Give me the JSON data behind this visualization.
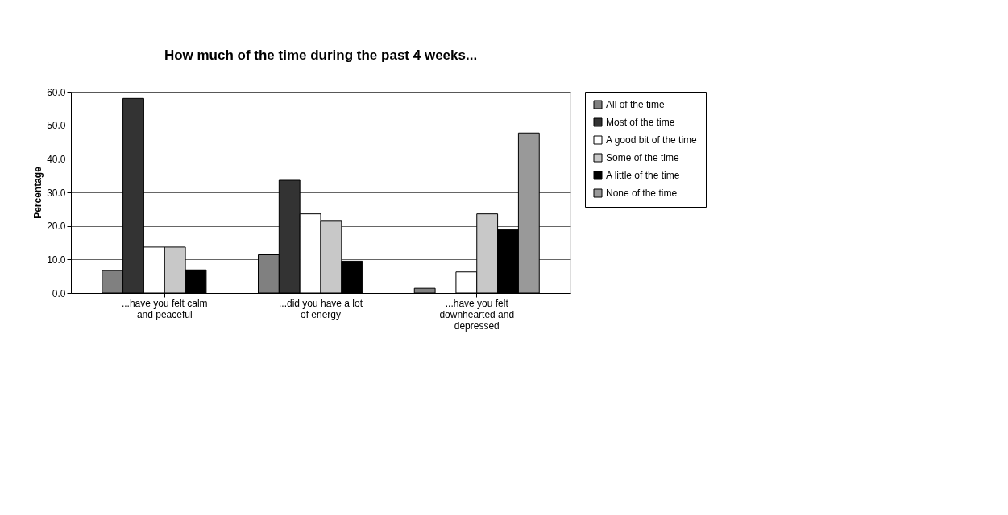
{
  "chart_data": {
    "type": "bar",
    "title": "How much of the time during the past 4 weeks...",
    "ylabel": "Percentage",
    "categories": [
      "...have you felt calm and peaceful",
      "...did you have a lot of energy",
      "...have you felt downhearted and depressed"
    ],
    "series": [
      {
        "name": "All of the time",
        "color": "#808080",
        "values": [
          6.7,
          11.4,
          1.4
        ]
      },
      {
        "name": "Most of the time",
        "color": "#333333",
        "values": [
          58.0,
          33.6,
          null
        ]
      },
      {
        "name": "A good bit of the time",
        "color": "#ffffff",
        "values": [
          13.7,
          23.6,
          6.3
        ]
      },
      {
        "name": "Some of the time",
        "color": "#c8c8c8",
        "values": [
          13.7,
          21.4,
          23.6
        ]
      },
      {
        "name": "A little of the time",
        "color": "#000000",
        "values": [
          6.9,
          9.5,
          18.9
        ]
      },
      {
        "name": "None of the time",
        "color": "#999999",
        "values": [
          null,
          null,
          47.7
        ]
      }
    ],
    "ylim": [
      0,
      60
    ],
    "yticks": [
      {
        "value": 0,
        "label": "0.0"
      },
      {
        "value": 10,
        "label": "10.0"
      },
      {
        "value": 20,
        "label": "20.0"
      },
      {
        "value": 30,
        "label": "30.0"
      },
      {
        "value": 40,
        "label": "40.0"
      },
      {
        "value": 50,
        "label": "50.0"
      },
      {
        "value": 60,
        "label": "60.0"
      }
    ],
    "grid": "y",
    "legend": "right"
  }
}
